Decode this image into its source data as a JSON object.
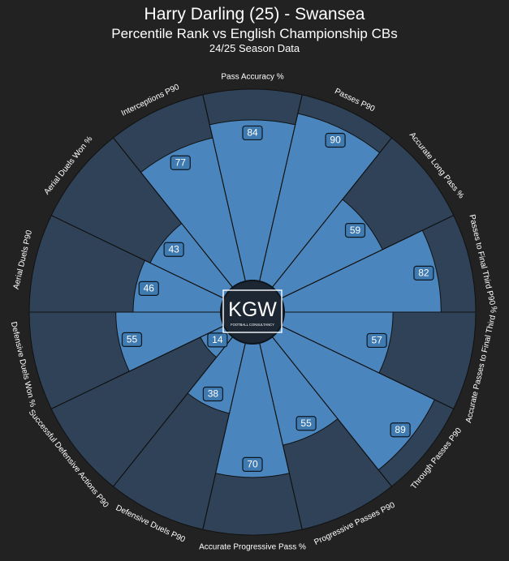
{
  "header": {
    "title": "Harry Darling (25) - Swansea",
    "subtitle": "Percentile Rank vs English Championship CBs",
    "season": "24/25 Season Data"
  },
  "logo": {
    "text": "KGW",
    "subtext": "FOOTBALL CONSULTANCY"
  },
  "colors": {
    "background": "#222222",
    "bg_wedge": "#2f4257",
    "value_wedge": "#4a86bd",
    "badge": "#3f7ab0",
    "badge_border": "#0c1620",
    "center": "#1c2733"
  },
  "chart_data": {
    "type": "polar-bar",
    "range": [
      0,
      100
    ],
    "title": "Harry Darling (25) - Swansea",
    "subtitle": "Percentile Rank vs English Championship CBs",
    "params": [
      "Pass Accuracy %",
      "Passes P90",
      "Accurate Long Pass %",
      "Passes to Final Third P90",
      "Accurate Passes to Final Third %",
      "Through Passes P90",
      "Progressive Passes P90",
      "Accurate Progressive Pass %",
      "Defensive Duels P90",
      "Successful Defensive Actions P90",
      "Defensive Duels Won %",
      "Aerial Duels P90",
      "Aerial Duels Won %",
      "Interceptions P90"
    ],
    "values": [
      84,
      90,
      59,
      82,
      57,
      89,
      55,
      70,
      38,
      14,
      55,
      46,
      43,
      77
    ]
  }
}
